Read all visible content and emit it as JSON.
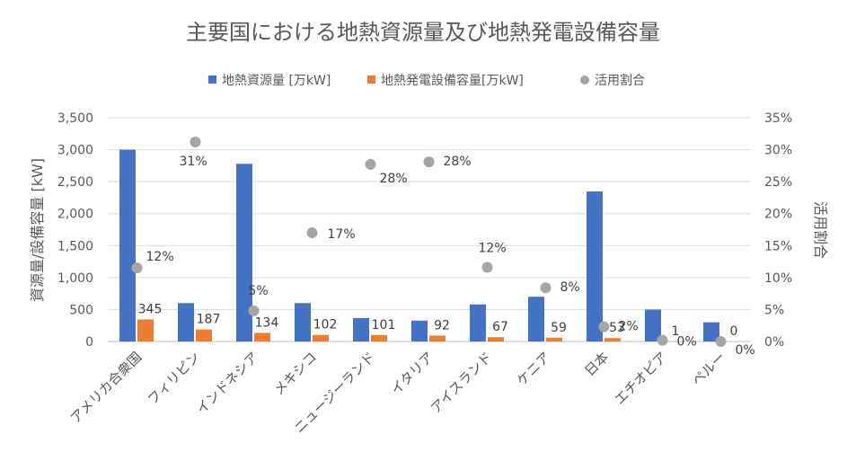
{
  "chart_data": {
    "type": "bar",
    "title": "主要国における地熱資源量及び地熱発電設備容量",
    "ylabel": "資源量/設備容量 [kW]",
    "y2label": "活用割合",
    "ylim": [
      0,
      3500
    ],
    "y_ticks": [
      "0",
      "500",
      "1,000",
      "1,500",
      "2,000",
      "2,500",
      "3,000",
      "3,500"
    ],
    "y2lim": [
      0,
      35
    ],
    "y2_ticks": [
      "0%",
      "5%",
      "10%",
      "15%",
      "20%",
      "25%",
      "30%",
      "35%"
    ],
    "legend_position": "top",
    "grid": true,
    "categories": [
      "アメリカ合衆国",
      "フィリピン",
      "インドネシア",
      "メキシコ",
      "ニュージーランド",
      "イタリア",
      "アイスランド",
      "ケニア",
      "日本",
      "エチオピア",
      "ペルー"
    ],
    "series": [
      {
        "name": "地熱資源量 [万kW]",
        "kind": "bar",
        "axis": "left",
        "color": "#4472C4",
        "values": [
          3000,
          600,
          2779,
          600,
          365,
          327,
          580,
          700,
          2347,
          500,
          300
        ]
      },
      {
        "name": "地熱発電設備容量[万kW]",
        "kind": "bar",
        "axis": "left",
        "color": "#ED7D31",
        "values": [
          345,
          187,
          134,
          102,
          101,
          92,
          67,
          59,
          53,
          1,
          0
        ],
        "labels": [
          "345",
          "187",
          "134",
          "102",
          "101",
          "92",
          "67",
          "59",
          "53",
          "1",
          "0"
        ]
      },
      {
        "name": "活用割合",
        "kind": "scatter",
        "axis": "right",
        "color": "#A5A5A5",
        "values": [
          11.5,
          31.2,
          4.8,
          17.0,
          27.7,
          28.1,
          11.6,
          8.4,
          2.3,
          0.2,
          0.0
        ],
        "labels": [
          "12%",
          "31%",
          "5%",
          "17%",
          "28%",
          "28%",
          "12%",
          "8%",
          "2%",
          "0%",
          "0%"
        ]
      }
    ]
  }
}
